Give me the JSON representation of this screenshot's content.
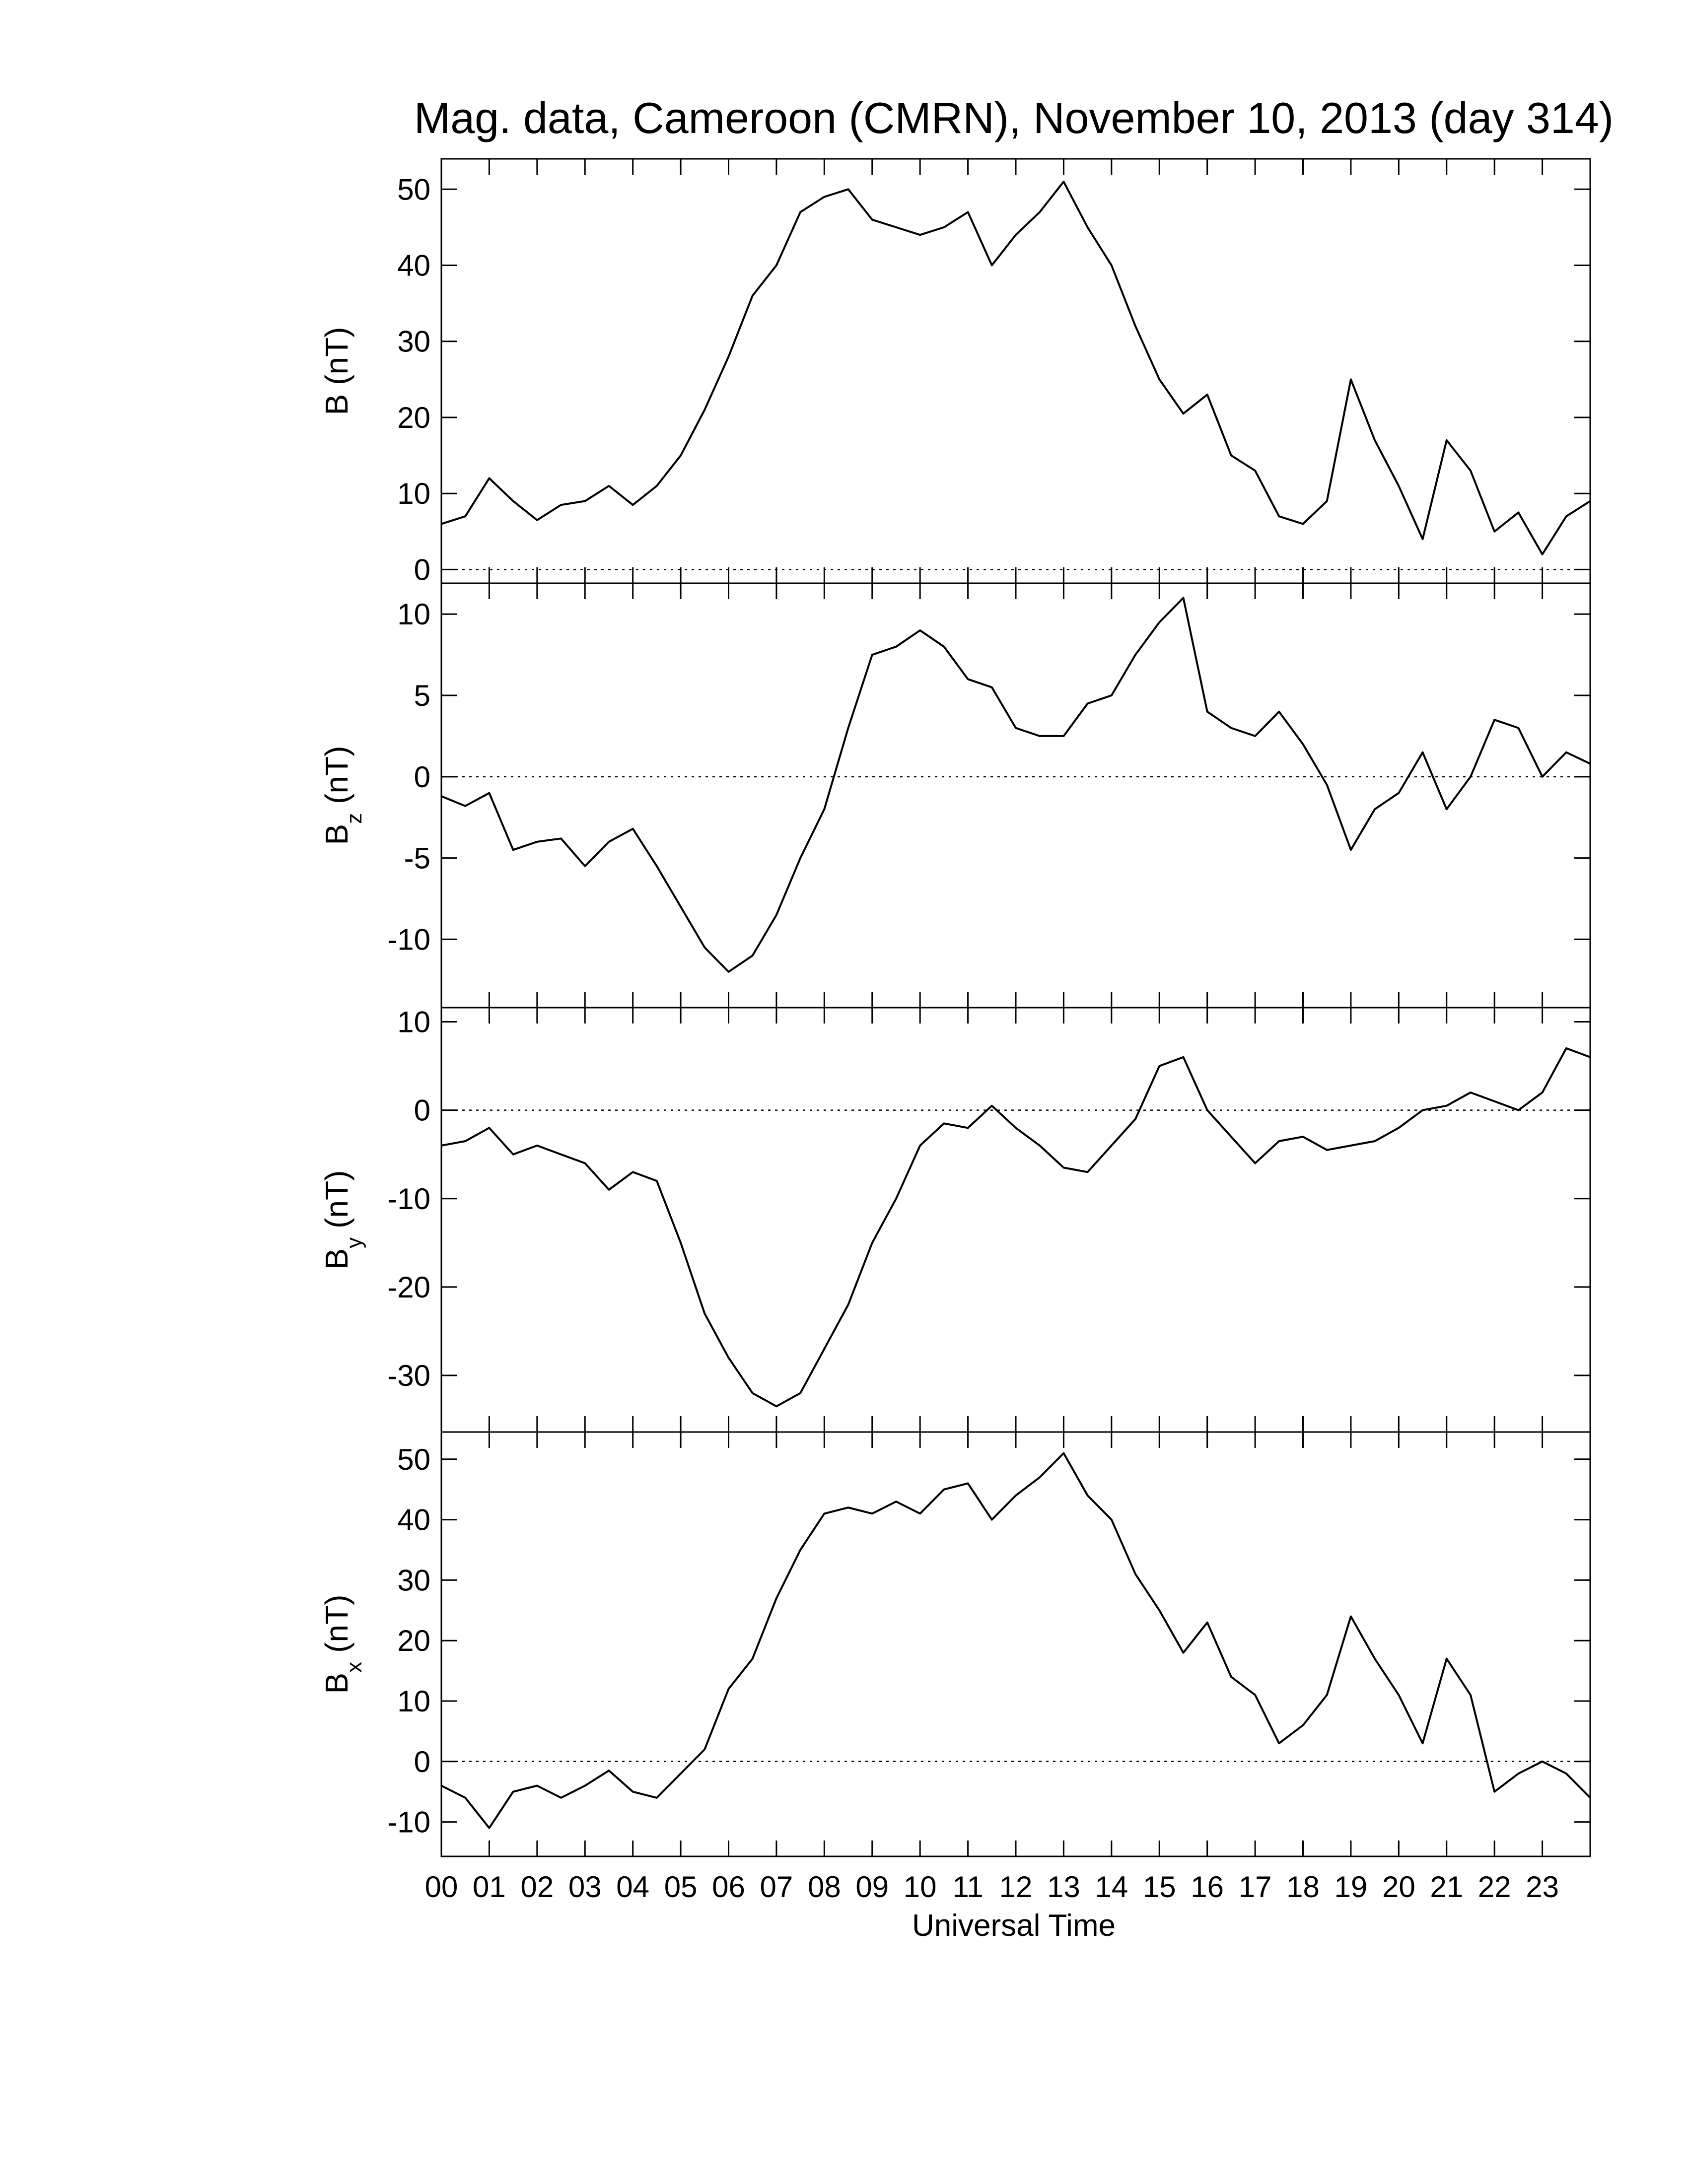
{
  "chart_data": [
    {
      "type": "line",
      "title": "Mag. data, Cameroon (CMRN), November 10, 2013 (day 314)",
      "ylabel": "B",
      "ylabel_unit": "(nT)",
      "color": "#000000",
      "zero_line": true,
      "xlim": [
        0,
        24
      ],
      "ylim": [
        -1.8,
        54
      ],
      "yticks": [
        0,
        10,
        20,
        30,
        40,
        50
      ],
      "x": [
        0,
        0.5,
        1,
        1.5,
        2,
        2.5,
        3,
        3.5,
        4,
        4.5,
        5,
        5.5,
        6,
        6.5,
        7,
        7.5,
        8,
        8.5,
        9,
        9.5,
        10,
        10.5,
        11,
        11.5,
        12,
        12.5,
        13,
        13.5,
        14,
        14.5,
        15,
        15.5,
        16,
        16.5,
        17,
        17.5,
        18,
        18.5,
        19,
        19.5,
        20,
        20.5,
        21,
        21.5,
        22,
        22.5,
        23,
        23.5,
        24
      ],
      "values": [
        6,
        7,
        12,
        9,
        6.5,
        8.5,
        9,
        11,
        8.5,
        11,
        15,
        21,
        28,
        36,
        40,
        47,
        49,
        50,
        46,
        45,
        44,
        45,
        47,
        40,
        44,
        47,
        51,
        45,
        40,
        32,
        25,
        20.5,
        23,
        15,
        13,
        7,
        6,
        9,
        25,
        17,
        11,
        4,
        17,
        13,
        5,
        7.5,
        2,
        7,
        9
      ]
    },
    {
      "type": "line",
      "ylabel": "B",
      "ylabel_sub": "z",
      "ylabel_unit": "(nT)",
      "color": "#000000",
      "zero_line": true,
      "xlim": [
        0,
        24
      ],
      "ylim": [
        -14.2,
        11.9
      ],
      "yticks": [
        -10,
        -5,
        0,
        5,
        10
      ],
      "x": [
        0,
        0.5,
        1,
        1.5,
        2,
        2.5,
        3,
        3.5,
        4,
        4.5,
        5,
        5.5,
        6,
        6.5,
        7,
        7.5,
        8,
        8.5,
        9,
        9.5,
        10,
        10.5,
        11,
        11.5,
        12,
        12.5,
        13,
        13.5,
        14,
        14.5,
        15,
        15.5,
        16,
        16.5,
        17,
        17.5,
        18,
        18.5,
        19,
        19.5,
        20,
        20.5,
        21,
        21.5,
        22,
        22.5,
        23,
        23.5,
        24
      ],
      "values": [
        -1.2,
        -1.8,
        -1,
        -4.5,
        -4,
        -3.8,
        -5.5,
        -4,
        -3.2,
        -5.5,
        -8,
        -10.5,
        -12,
        -11,
        -8.5,
        -5,
        -2,
        3,
        7.5,
        8,
        9,
        8,
        6,
        5.5,
        3,
        2.5,
        2.5,
        4.5,
        5,
        7.5,
        9.5,
        11,
        4,
        3,
        2.5,
        4,
        2,
        -0.5,
        -4.5,
        -2,
        -1,
        1.5,
        -2,
        0,
        3.5,
        3,
        0,
        1.5,
        0.8
      ]
    },
    {
      "type": "line",
      "ylabel": "B",
      "ylabel_sub": "y",
      "ylabel_unit": "(nT)",
      "color": "#000000",
      "zero_line": true,
      "xlim": [
        0,
        24
      ],
      "ylim": [
        -36.4,
        11.6
      ],
      "yticks": [
        -30,
        -20,
        -10,
        0,
        10
      ],
      "x": [
        0,
        0.5,
        1,
        1.5,
        2,
        2.5,
        3,
        3.5,
        4,
        4.5,
        5,
        5.5,
        6,
        6.5,
        7,
        7.5,
        8,
        8.5,
        9,
        9.5,
        10,
        10.5,
        11,
        11.5,
        12,
        12.5,
        13,
        13.5,
        14,
        14.5,
        15,
        15.5,
        16,
        16.5,
        17,
        17.5,
        18,
        18.5,
        19,
        19.5,
        20,
        20.5,
        21,
        21.5,
        22,
        22.5,
        23,
        23.5,
        24
      ],
      "values": [
        -4,
        -3.5,
        -2,
        -5,
        -4,
        -5,
        -6,
        -9,
        -7,
        -8,
        -15,
        -23,
        -28,
        -32,
        -33.5,
        -32,
        -27,
        -22,
        -15,
        -10,
        -4,
        -1.5,
        -2,
        0.5,
        -2,
        -4,
        -6.5,
        -7,
        -4,
        -1,
        5,
        6,
        0,
        -3,
        -6,
        -3.5,
        -3,
        -4.5,
        -4,
        -3.5,
        -2,
        0,
        0.5,
        2,
        1,
        0,
        2,
        7,
        6
      ]
    },
    {
      "type": "line",
      "ylabel": "B",
      "ylabel_sub": "x",
      "ylabel_unit": "(nT)",
      "color": "#000000",
      "zero_line": true,
      "xlabel": "Universal Time",
      "xlim": [
        0,
        24
      ],
      "ylim": [
        -15.7,
        54.5
      ],
      "yticks": [
        -10,
        0,
        10,
        20,
        30,
        40,
        50
      ],
      "xticks": [
        {
          "value": 0,
          "label": "00"
        },
        {
          "value": 1,
          "label": "01"
        },
        {
          "value": 2,
          "label": "02"
        },
        {
          "value": 3,
          "label": "03"
        },
        {
          "value": 4,
          "label": "04"
        },
        {
          "value": 5,
          "label": "05"
        },
        {
          "value": 6,
          "label": "06"
        },
        {
          "value": 7,
          "label": "07"
        },
        {
          "value": 8,
          "label": "08"
        },
        {
          "value": 9,
          "label": "09"
        },
        10,
        11,
        12,
        13,
        14,
        15,
        16,
        17,
        18,
        19,
        20,
        21,
        22,
        23
      ],
      "x": [
        0,
        0.5,
        1,
        1.5,
        2,
        2.5,
        3,
        3.5,
        4,
        4.5,
        5,
        5.5,
        6,
        6.5,
        7,
        7.5,
        8,
        8.5,
        9,
        9.5,
        10,
        10.5,
        11,
        11.5,
        12,
        12.5,
        13,
        13.5,
        14,
        14.5,
        15,
        15.5,
        16,
        16.5,
        17,
        17.5,
        18,
        18.5,
        19,
        19.5,
        20,
        20.5,
        21,
        21.5,
        22,
        22.5,
        23,
        23.5,
        24
      ],
      "values": [
        -4,
        -6,
        -11,
        -5,
        -4,
        -6,
        -4,
        -1.5,
        -5,
        -6,
        -2,
        2,
        12,
        17,
        27,
        35,
        41,
        42,
        41,
        43,
        41,
        45,
        46,
        40,
        44,
        47,
        51,
        44,
        40,
        31,
        25,
        18,
        23,
        14,
        11,
        3,
        6,
        11,
        24,
        17,
        11,
        3,
        17,
        11,
        -5,
        -2,
        0,
        -2,
        -6
      ]
    }
  ]
}
